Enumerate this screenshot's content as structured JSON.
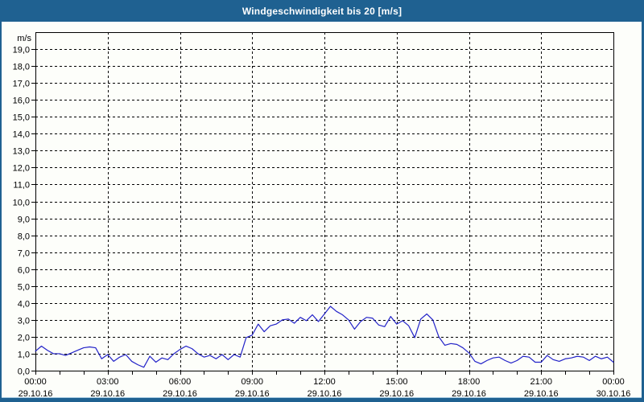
{
  "window": {
    "title": "Windgeschwindigkeit bis 20 [m/s]"
  },
  "colors": {
    "titlebar": "#1F6191",
    "frame_border": "#1F6191",
    "background": "#FDFEFA",
    "grid": "#000000",
    "axis": "#000000",
    "line": "#2222C8",
    "title_text": "#FFFFFF",
    "label_text": "#000000"
  },
  "chart_data": {
    "type": "line",
    "title": "Windgeschwindigkeit bis 20 [m/s]",
    "ylabel": "m/s",
    "xlabel": "",
    "grid": {
      "horizontal": "dashed",
      "vertical": "dashed"
    },
    "legend": "none",
    "y_axis": {
      "min": 0,
      "max": 20,
      "tick_step": 1,
      "tick_labels": [
        "0,0",
        "1,0",
        "2,0",
        "3,0",
        "4,0",
        "5,0",
        "6,0",
        "7,0",
        "8,0",
        "9,0",
        "10,0",
        "11,0",
        "12,0",
        "13,0",
        "14,0",
        "15,0",
        "16,0",
        "17,0",
        "18,0",
        "19,0"
      ],
      "unit_label": "m/s"
    },
    "x_axis": {
      "start": "29.10.16 00:00",
      "end": "30.10.16 00:00",
      "total_hours": 24,
      "minor_tick_hours": 1,
      "major_tick_hours": 3,
      "major_ticks": [
        {
          "time": "00:00",
          "date": "29.10.16"
        },
        {
          "time": "03:00",
          "date": "29.10.16"
        },
        {
          "time": "06:00",
          "date": "29.10.16"
        },
        {
          "time": "09:00",
          "date": "29.10.16"
        },
        {
          "time": "12:00",
          "date": "29.10.16"
        },
        {
          "time": "15:00",
          "date": "29.10.16"
        },
        {
          "time": "18:00",
          "date": "29.10.16"
        },
        {
          "time": "21:00",
          "date": "29.10.16"
        },
        {
          "time": "00:00",
          "date": "30.10.16"
        }
      ]
    },
    "series": [
      {
        "name": "Windgeschwindigkeit",
        "color": "#2222C8",
        "interval_minutes": 15,
        "start_time": "29.10.16 00:00",
        "values": [
          1.15,
          1.45,
          1.2,
          1.0,
          1.0,
          0.9,
          1.05,
          1.2,
          1.35,
          1.4,
          1.35,
          0.7,
          0.95,
          0.55,
          0.8,
          0.95,
          0.55,
          0.35,
          0.2,
          0.85,
          0.5,
          0.75,
          0.65,
          1.0,
          1.25,
          1.45,
          1.3,
          1.0,
          0.8,
          0.9,
          0.7,
          0.95,
          0.65,
          0.95,
          0.8,
          1.95,
          2.1,
          2.75,
          2.3,
          2.65,
          2.75,
          3.0,
          3.05,
          2.8,
          3.15,
          2.95,
          3.3,
          2.9,
          3.35,
          3.8,
          3.5,
          3.3,
          3.0,
          2.45,
          2.9,
          3.15,
          3.1,
          2.7,
          2.6,
          3.2,
          2.75,
          2.95,
          2.65,
          1.95,
          3.05,
          3.35,
          3.0,
          2.0,
          1.5,
          1.6,
          1.55,
          1.35,
          1.05,
          0.55,
          0.4,
          0.6,
          0.75,
          0.8,
          0.6,
          0.45,
          0.6,
          0.85,
          0.8,
          0.5,
          0.5,
          0.9,
          0.65,
          0.55,
          0.7,
          0.75,
          0.85,
          0.8,
          0.6,
          0.85,
          0.7,
          0.8,
          0.5
        ]
      }
    ]
  }
}
